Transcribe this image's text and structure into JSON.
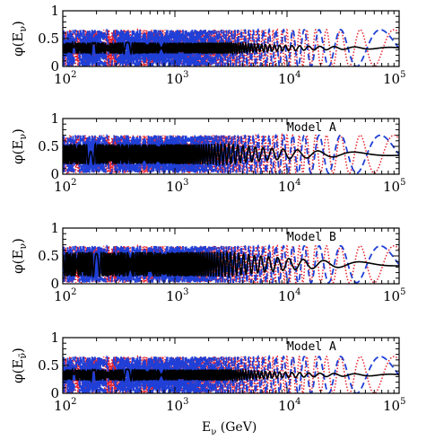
{
  "chart_data": [
    {
      "type": "line",
      "ylabel": "φ(E_ν)",
      "ylabel_base": "φ(E",
      "ylabel_sub": "ν",
      "ylabel_close": ")",
      "annotation": "",
      "xscale": "log",
      "xlim": [
        100,
        100000
      ],
      "ylim": [
        0,
        1
      ],
      "x_ticks": [
        {
          "base": "10",
          "exp": "2"
        },
        {
          "base": "10",
          "exp": "3"
        },
        {
          "base": "10",
          "exp": "4"
        },
        {
          "base": "10",
          "exp": "5"
        }
      ],
      "y_ticks": [
        "0",
        "0.5",
        "1"
      ],
      "series": [
        {
          "style": "dotted",
          "color": "#e8202a",
          "mean": 0.33,
          "amp": 0.33,
          "phase_scale": 1.0,
          "phase_offset": 0.0
        },
        {
          "style": "dashed",
          "color": "#1f3fd6",
          "mean": 0.33,
          "amp": 0.33,
          "phase_scale": 0.6,
          "phase_offset": 1.3
        },
        {
          "style": "solid",
          "color": "#000000",
          "mean": 0.33,
          "amp": 0.1,
          "phase_scale": 0.85,
          "phase_offset": 0.6,
          "damped": true
        }
      ]
    },
    {
      "type": "line",
      "ylabel": "φ(E_ν)",
      "ylabel_base": "φ(E",
      "ylabel_sub": "ν",
      "ylabel_close": ")",
      "annotation": "Model A",
      "xscale": "log",
      "xlim": [
        100,
        100000
      ],
      "ylim": [
        0,
        1
      ],
      "x_ticks": [
        {
          "base": "10",
          "exp": "2"
        },
        {
          "base": "10",
          "exp": "3"
        },
        {
          "base": "10",
          "exp": "4"
        },
        {
          "base": "10",
          "exp": "5"
        }
      ],
      "y_ticks": [
        "0",
        "0.5",
        "1"
      ],
      "series": [
        {
          "style": "dotted",
          "color": "#e8202a",
          "mean": 0.36,
          "amp": 0.34,
          "phase_scale": 1.0,
          "phase_offset": 0.0
        },
        {
          "style": "dashed",
          "color": "#1f3fd6",
          "mean": 0.36,
          "amp": 0.34,
          "phase_scale": 0.6,
          "phase_offset": 1.3
        },
        {
          "style": "solid",
          "color": "#000000",
          "mean": 0.36,
          "amp": 0.18,
          "phase_scale": 0.4,
          "phase_offset": 0.6,
          "damped": true
        }
      ]
    },
    {
      "type": "line",
      "ylabel": "φ(E_ν)",
      "ylabel_base": "φ(E",
      "ylabel_sub": "ν",
      "ylabel_close": ")",
      "annotation": "Model B",
      "xscale": "log",
      "xlim": [
        100,
        100000
      ],
      "ylim": [
        0,
        1
      ],
      "x_ticks": [
        {
          "base": "10",
          "exp": "2"
        },
        {
          "base": "10",
          "exp": "3"
        },
        {
          "base": "10",
          "exp": "4"
        },
        {
          "base": "10",
          "exp": "5"
        }
      ],
      "y_ticks": [
        "0",
        "0.5",
        "1"
      ],
      "series": [
        {
          "style": "dotted",
          "color": "#e8202a",
          "mean": 0.35,
          "amp": 0.33,
          "phase_scale": 1.0,
          "phase_offset": 0.0
        },
        {
          "style": "dashed",
          "color": "#1f3fd6",
          "mean": 0.35,
          "amp": 0.33,
          "phase_scale": 0.6,
          "phase_offset": 1.3
        },
        {
          "style": "solid",
          "color": "#000000",
          "mean": 0.35,
          "amp": 0.22,
          "phase_scale": 0.45,
          "phase_offset": 0.6,
          "damped": true
        }
      ]
    },
    {
      "type": "line",
      "ylabel": "φ(E_ν̄)",
      "ylabel_base": "φ(E",
      "ylabel_sub": "ν̄",
      "ylabel_close": ")",
      "annotation": "Model A",
      "xlabel": "E_ν (GeV)",
      "xlabel_base": "E",
      "xlabel_sub": "ν",
      "xlabel_rest": " (GeV)",
      "xscale": "log",
      "xlim": [
        100,
        100000
      ],
      "ylim": [
        0,
        1
      ],
      "x_ticks": [
        {
          "base": "10",
          "exp": "2"
        },
        {
          "base": "10",
          "exp": "3"
        },
        {
          "base": "10",
          "exp": "4"
        },
        {
          "base": "10",
          "exp": "5"
        }
      ],
      "y_ticks": [
        "0",
        "0.5",
        "1"
      ],
      "series": [
        {
          "style": "dotted",
          "color": "#e8202a",
          "mean": 0.33,
          "amp": 0.33,
          "phase_scale": 1.0,
          "phase_offset": 0.0
        },
        {
          "style": "dashed",
          "color": "#1f3fd6",
          "mean": 0.33,
          "amp": 0.33,
          "phase_scale": 0.6,
          "phase_offset": 1.3
        },
        {
          "style": "solid",
          "color": "#000000",
          "mean": 0.33,
          "amp": 0.1,
          "phase_scale": 0.85,
          "phase_offset": 0.6,
          "damped": true
        }
      ]
    }
  ]
}
